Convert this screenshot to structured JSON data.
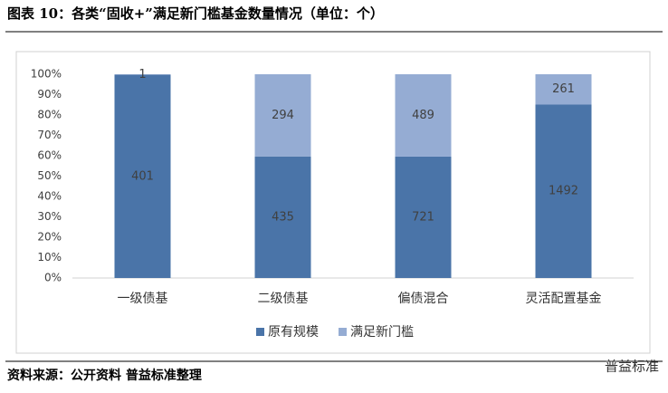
{
  "chart_data": {
    "type": "bar",
    "stacked": "percent",
    "title": "图表 10：各类“固收+”满足新门槛基金数量情况（单位：个）",
    "categories": [
      "一级债基",
      "二级债基",
      "偏债混合",
      "灵活配置基金"
    ],
    "series": [
      {
        "name": "原有规模",
        "color": "#4a74a8",
        "values": [
          401,
          435,
          721,
          1492
        ]
      },
      {
        "name": "满足新门槛",
        "color": "#95acd3",
        "values": [
          1,
          294,
          489,
          261
        ]
      }
    ],
    "ylim": [
      0,
      100
    ],
    "yticks": [
      {
        "value": 0,
        "label": "0%"
      },
      {
        "value": 10,
        "label": "10%"
      },
      {
        "value": 20,
        "label": "20%"
      },
      {
        "value": 30,
        "label": "30%"
      },
      {
        "value": 40,
        "label": "40%"
      },
      {
        "value": 50,
        "label": "50%"
      },
      {
        "value": 60,
        "label": "60%"
      },
      {
        "value": 70,
        "label": "70%"
      },
      {
        "value": 80,
        "label": "80%"
      },
      {
        "value": 90,
        "label": "90%"
      },
      {
        "value": 100,
        "label": "100%"
      }
    ],
    "legend": "bottom",
    "source": "资料来源：公开资料 普益标准整理",
    "watermark": "普益标准"
  }
}
